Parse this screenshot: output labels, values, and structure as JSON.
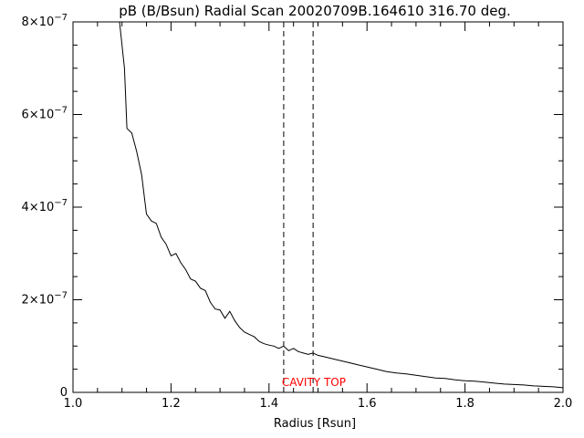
{
  "chart_data": {
    "type": "line",
    "title": "pB (B/Bsun) Radial Scan 20020709B.164610 316.70 deg.",
    "xlabel": "Radius [Rsun]",
    "ylabel": "",
    "xlim": [
      1.0,
      2.0
    ],
    "ylim": [
      0,
      8e-07
    ],
    "x_ticks": [
      1.0,
      1.2,
      1.4,
      1.6,
      1.8,
      2.0
    ],
    "x_tick_labels": [
      "1.0",
      "1.2",
      "1.4",
      "1.6",
      "1.8",
      "2.0"
    ],
    "y_ticks": [
      0,
      2e-07,
      4e-07,
      6e-07,
      8e-07
    ],
    "y_tick_labels": [
      {
        "mantissa": "0",
        "exponent": ""
      },
      {
        "mantissa": "2×10",
        "exponent": "−7"
      },
      {
        "mantissa": "4×10",
        "exponent": "−7"
      },
      {
        "mantissa": "6×10",
        "exponent": "−7"
      },
      {
        "mantissa": "8×10",
        "exponent": "−7"
      }
    ],
    "grid": false,
    "series": [
      {
        "color": "#000000",
        "x": [
          1.095,
          1.105,
          1.11,
          1.12,
          1.13,
          1.14,
          1.15,
          1.16,
          1.17,
          1.18,
          1.19,
          1.2,
          1.21,
          1.22,
          1.23,
          1.24,
          1.25,
          1.26,
          1.27,
          1.28,
          1.29,
          1.3,
          1.31,
          1.32,
          1.33,
          1.34,
          1.35,
          1.36,
          1.37,
          1.38,
          1.39,
          1.4,
          1.41,
          1.42,
          1.43,
          1.44,
          1.45,
          1.46,
          1.47,
          1.48,
          1.49,
          1.5,
          1.52,
          1.54,
          1.56,
          1.58,
          1.6,
          1.62,
          1.64,
          1.66,
          1.68,
          1.7,
          1.72,
          1.74,
          1.76,
          1.78,
          1.8,
          1.82,
          1.84,
          1.86,
          1.88,
          1.9,
          1.92,
          1.94,
          1.96,
          1.98,
          2.0
        ],
        "y": [
          8e-07,
          7e-07,
          5.7e-07,
          5.6e-07,
          5.2e-07,
          4.7e-07,
          3.85e-07,
          3.7e-07,
          3.65e-07,
          3.35e-07,
          3.2e-07,
          2.95e-07,
          3e-07,
          2.8e-07,
          2.65e-07,
          2.45e-07,
          2.4e-07,
          2.25e-07,
          2.2e-07,
          1.95e-07,
          1.8e-07,
          1.78e-07,
          1.6e-07,
          1.75e-07,
          1.55e-07,
          1.4e-07,
          1.3e-07,
          1.25e-07,
          1.2e-07,
          1.1e-07,
          1.05e-07,
          1.02e-07,
          1e-07,
          9.5e-08,
          1e-07,
          9e-08,
          9.5e-08,
          8.8e-08,
          8.5e-08,
          8.2e-08,
          8.5e-08,
          8e-08,
          7.5e-08,
          7e-08,
          6.5e-08,
          6e-08,
          5.5e-08,
          5e-08,
          4.5e-08,
          4.2e-08,
          4e-08,
          3.7e-08,
          3.4e-08,
          3.1e-08,
          3e-08,
          2.7e-08,
          2.5e-08,
          2.4e-08,
          2.2e-08,
          2e-08,
          1.8e-08,
          1.7e-08,
          1.6e-08,
          1.4e-08,
          1.3e-08,
          1.2e-08,
          1e-08
        ]
      }
    ],
    "vertical_lines": [
      {
        "x": 1.43,
        "style": "dashed",
        "color": "#000000"
      },
      {
        "x": 1.49,
        "style": "dashed",
        "color": "#000000"
      }
    ],
    "annotations": [
      {
        "text": "CAVITY TOP",
        "x": 1.43,
        "color": "#ff0000"
      }
    ]
  }
}
